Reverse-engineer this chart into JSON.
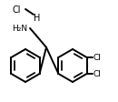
{
  "bg_color": "#ffffff",
  "line_color": "#000000",
  "line_width": 1.4,
  "font_size": 6.5,
  "hcl_label": "Cl",
  "h_label": "H",
  "nh2_label": "H₂N",
  "cl_label": "Cl"
}
